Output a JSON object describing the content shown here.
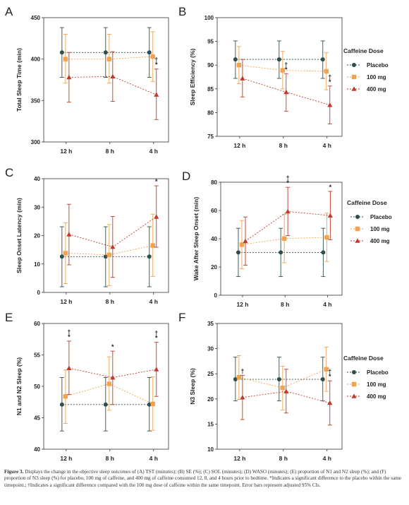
{
  "colors": {
    "placebo": "#2f4f4f",
    "100mg": "#f5a24e",
    "400mg": "#c0392b"
  },
  "legend_title": "Caffeine Dose",
  "legend_labels": [
    "Placebo",
    "100 mg",
    "400 mg"
  ],
  "caption": {
    "label": "Figure 3.",
    "text": " Displays the change in the objective sleep outcomes of (A) TST (minutes); (B) SE (%); (C) SOL (minutes); (D) WASO (minutes); (E) proportion of N1 and N2 sleep (%); and (F) proportion of N3 sleep (%) for placebo, 100 mg of caffeine, and 400 mg of caffeine consumed 12, 8, and 4 hours prior to bedtime. *Indicates a significant difference to the placebo within the same timepoint.; †Indicates a significant difference compared with the 100 mg dose of caffeine within the same timepoint. Error bars represent adjusted 95% CIs."
  },
  "chart_data": [
    {
      "panel": "A",
      "type": "line",
      "ylabel": "Total Sleep Time (min)",
      "categories": [
        "12 h",
        "8 h",
        "4 h"
      ],
      "ylim": [
        300,
        450
      ],
      "yticks": [
        300,
        350,
        400,
        450
      ],
      "series": [
        {
          "name": "Placebo",
          "values": [
            408,
            408,
            408
          ],
          "ci_low": [
            378,
            378,
            378
          ],
          "ci_high": [
            438,
            438,
            438
          ]
        },
        {
          "name": "100 mg",
          "values": [
            400,
            400,
            403
          ],
          "ci_low": [
            371,
            371,
            373
          ],
          "ci_high": [
            430,
            430,
            433
          ]
        },
        {
          "name": "400 mg",
          "values": [
            378,
            379,
            357
          ],
          "ci_low": [
            348,
            349,
            327
          ],
          "ci_high": [
            408,
            409,
            388
          ]
        }
      ],
      "annotations": [
        {
          "category": "4 h",
          "text": "*"
        },
        {
          "category": "4 h",
          "text": "†"
        }
      ]
    },
    {
      "panel": "B",
      "type": "line",
      "ylabel": "Sleep Efficiency (%)",
      "categories": [
        "12 h",
        "8 h",
        "4 h"
      ],
      "ylim": [
        75,
        100
      ],
      "yticks": [
        75,
        80,
        85,
        90,
        95,
        100
      ],
      "series": [
        {
          "name": "Placebo",
          "values": [
            91.2,
            91.2,
            91.2
          ],
          "ci_low": [
            87.2,
            87.2,
            87.2
          ],
          "ci_high": [
            95.1,
            95.1,
            95.1
          ]
        },
        {
          "name": "100 mg",
          "values": [
            90.0,
            88.9,
            88.7
          ],
          "ci_low": [
            86.1,
            85.0,
            84.8
          ],
          "ci_high": [
            93.9,
            92.9,
            92.6
          ]
        },
        {
          "name": "400 mg",
          "values": [
            87.2,
            84.3,
            81.6
          ],
          "ci_low": [
            83.3,
            80.3,
            77.6
          ],
          "ci_high": [
            91.2,
            88.2,
            85.6
          ]
        }
      ],
      "annotations": [
        {
          "category": "8 h",
          "text": "*"
        },
        {
          "category": "8 h",
          "text": "†"
        },
        {
          "category": "4 h",
          "text": "*"
        },
        {
          "category": "4 h",
          "text": "†"
        }
      ]
    },
    {
      "panel": "C",
      "type": "line",
      "ylabel": "Sleep Onset Latency (min)",
      "categories": [
        "12 h",
        "8 h",
        "4 h"
      ],
      "ylim": [
        0,
        40
      ],
      "yticks": [
        0,
        10,
        20,
        30,
        40
      ],
      "series": [
        {
          "name": "Placebo",
          "values": [
            12.6,
            12.6,
            12.6
          ],
          "ci_low": [
            2.0,
            2.0,
            2.0
          ],
          "ci_high": [
            23.1,
            23.1,
            23.1
          ]
        },
        {
          "name": "100 mg",
          "values": [
            13.8,
            13.2,
            16.5
          ],
          "ci_low": [
            3.1,
            2.4,
            5.6
          ],
          "ci_high": [
            24.5,
            23.9,
            27.5
          ]
        },
        {
          "name": "400 mg",
          "values": [
            20.4,
            16.0,
            26.6
          ],
          "ci_low": [
            9.7,
            5.3,
            15.9
          ],
          "ci_high": [
            31.0,
            26.7,
            37.5
          ]
        }
      ],
      "annotations": [
        {
          "category": "4 h",
          "text": "*"
        }
      ]
    },
    {
      "panel": "D",
      "type": "line",
      "ylabel": "Wake After Sleep Onset (min)",
      "categories": [
        "12 h",
        "8 h",
        "4 h"
      ],
      "ylim": [
        0,
        80
      ],
      "yticks": [
        0,
        20,
        40,
        60,
        80
      ],
      "series": [
        {
          "name": "Placebo",
          "values": [
            30.3,
            30.3,
            30.3
          ],
          "ci_low": [
            13.2,
            13.2,
            13.2
          ],
          "ci_high": [
            47.4,
            47.4,
            47.4
          ]
        },
        {
          "name": "100 mg",
          "values": [
            35.8,
            40.1,
            41.0
          ],
          "ci_low": [
            18.7,
            23.0,
            23.9
          ],
          "ci_high": [
            52.9,
            57.2,
            58.1
          ]
        },
        {
          "name": "400 mg",
          "values": [
            38.3,
            59.3,
            56.4
          ],
          "ci_low": [
            21.2,
            42.2,
            39.3
          ],
          "ci_high": [
            55.4,
            76.4,
            73.5
          ]
        }
      ],
      "annotations": [
        {
          "category": "8 h",
          "text": "*"
        },
        {
          "category": "8 h",
          "text": "†"
        },
        {
          "category": "4 h",
          "text": "*"
        }
      ]
    },
    {
      "panel": "E",
      "type": "line",
      "ylabel": "N1 and N2 Sleep (%)",
      "categories": [
        "12 h",
        "8 h",
        "4 h"
      ],
      "ylim": [
        40,
        60
      ],
      "yticks": [
        40,
        45,
        50,
        55,
        60
      ],
      "series": [
        {
          "name": "Placebo",
          "values": [
            47.1,
            47.1,
            47.1
          ],
          "ci_low": [
            42.9,
            42.9,
            42.9
          ],
          "ci_high": [
            51.4,
            51.4,
            51.4
          ]
        },
        {
          "name": "100 mg",
          "values": [
            48.4,
            50.4,
            47.2
          ],
          "ci_low": [
            44.1,
            46.2,
            43.0
          ],
          "ci_high": [
            52.6,
            54.7,
            51.5
          ]
        },
        {
          "name": "400 mg",
          "values": [
            52.9,
            51.4,
            52.7
          ],
          "ci_low": [
            48.7,
            47.1,
            48.4
          ],
          "ci_high": [
            57.2,
            55.6,
            57.0
          ]
        }
      ],
      "annotations": [
        {
          "category": "12 h",
          "text": "*"
        },
        {
          "category": "12 h",
          "text": "†"
        },
        {
          "category": "8 h",
          "text": "*"
        },
        {
          "category": "4 h",
          "text": "*"
        },
        {
          "category": "4 h",
          "text": "†"
        }
      ]
    },
    {
      "panel": "F",
      "type": "line",
      "ylabel": "N3 Sleep (%)",
      "categories": [
        "12 h",
        "8 h",
        "4 h"
      ],
      "ylim": [
        10,
        35
      ],
      "yticks": [
        10,
        15,
        20,
        25,
        30,
        35
      ],
      "series": [
        {
          "name": "Placebo",
          "values": [
            23.9,
            23.9,
            23.9
          ],
          "ci_low": [
            19.6,
            19.6,
            19.6
          ],
          "ci_high": [
            28.3,
            28.3,
            28.3
          ]
        },
        {
          "name": "100 mg",
          "values": [
            24.3,
            22.2,
            25.9
          ],
          "ci_low": [
            19.9,
            17.8,
            21.5
          ],
          "ci_high": [
            28.6,
            26.5,
            30.3
          ]
        },
        {
          "name": "400 mg",
          "values": [
            20.3,
            21.5,
            19.2
          ],
          "ci_low": [
            15.9,
            17.2,
            14.8
          ],
          "ci_high": [
            24.7,
            25.9,
            23.6
          ]
        }
      ],
      "annotations": [
        {
          "category": "12 h",
          "text": "†"
        },
        {
          "category": "4 h",
          "text": "*"
        },
        {
          "category": "4 h",
          "text": "†"
        }
      ]
    }
  ]
}
